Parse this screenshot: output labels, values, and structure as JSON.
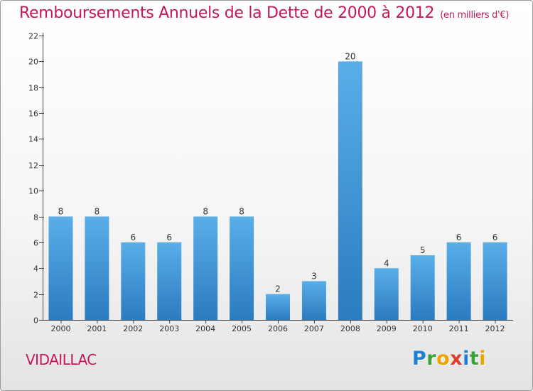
{
  "header": {
    "title": "Remboursements Annuels de la Dette de 2000 à 2012",
    "subtitle": "(en milliers d'€)"
  },
  "commune": "VIDAILLAC",
  "logo": {
    "letters": [
      {
        "ch": "P",
        "color": "#1f7fd6"
      },
      {
        "ch": "r",
        "color": "#3aa33a"
      },
      {
        "ch": "o",
        "color": "#f0a400"
      },
      {
        "ch": "x",
        "color": "#e23a2a"
      },
      {
        "ch": "i",
        "color": "#1f7fd6"
      },
      {
        "ch": "t",
        "color": "#3aa33a"
      },
      {
        "ch": "i",
        "color": "#f0a400"
      }
    ]
  },
  "chart_data": {
    "type": "bar",
    "title": "Remboursements Annuels de la Dette de 2000 à 2012",
    "subtitle": "(en milliers d'€)",
    "categories": [
      "2000",
      "2001",
      "2002",
      "2003",
      "2004",
      "2005",
      "2006",
      "2007",
      "2008",
      "2009",
      "2010",
      "2011",
      "2012"
    ],
    "values": [
      8,
      8,
      6,
      6,
      8,
      8,
      2,
      3,
      20,
      4,
      5,
      6,
      6
    ],
    "ylim": [
      0,
      22
    ],
    "yticks": [
      0,
      2,
      4,
      6,
      8,
      10,
      12,
      14,
      16,
      18,
      20,
      22
    ],
    "grid": false,
    "bar_color": "#4a9ee0"
  }
}
